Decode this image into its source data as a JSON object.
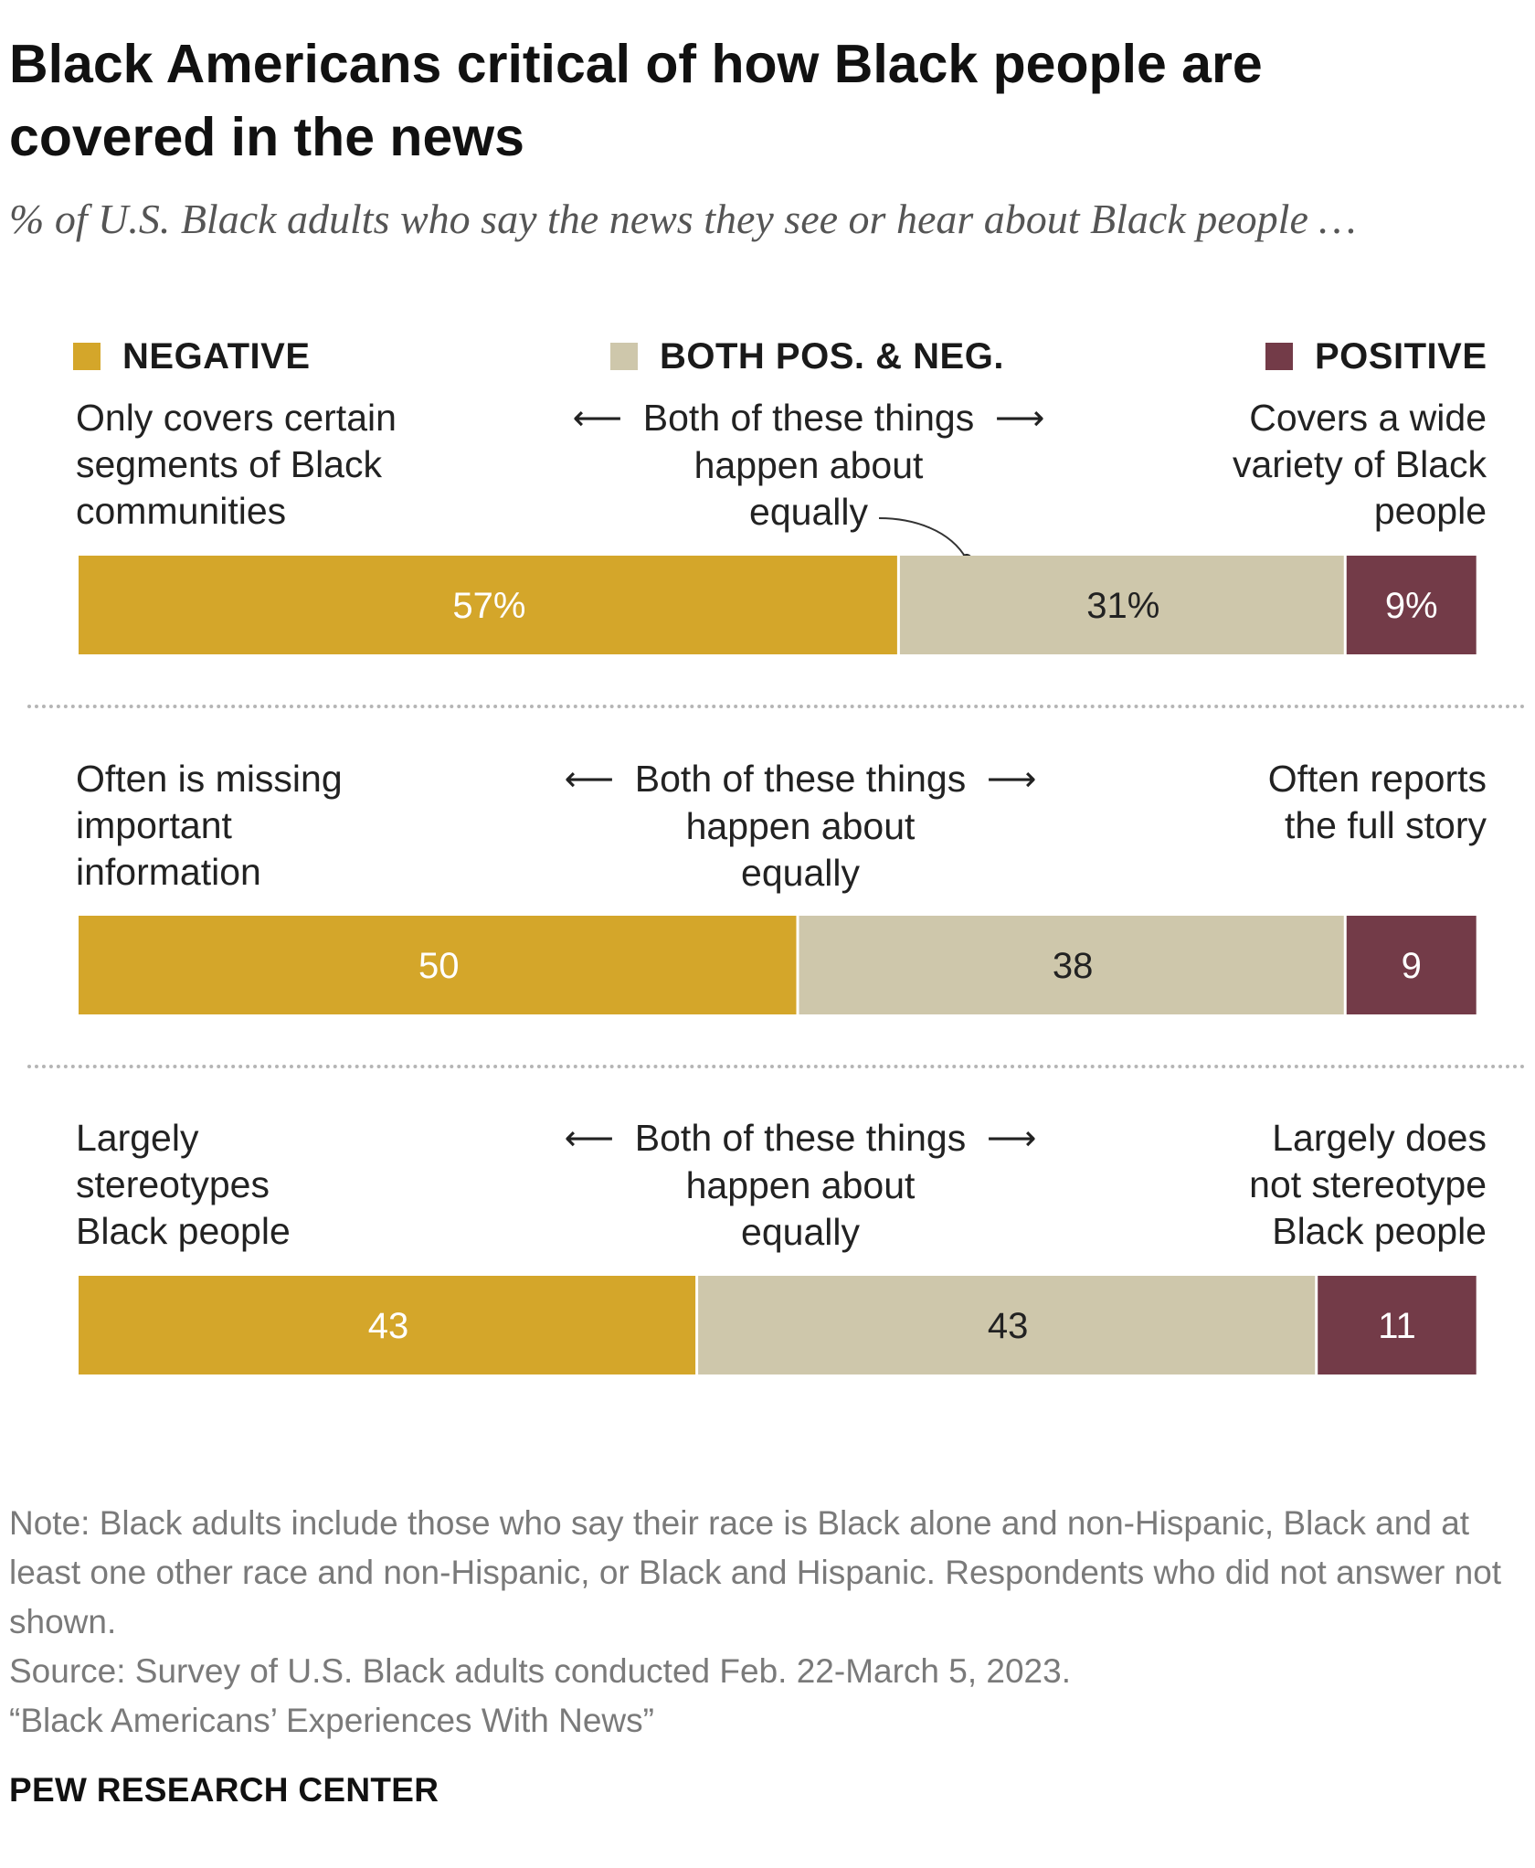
{
  "title": "Black Americans critical of how Black people are covered in the news",
  "subtitle": "% of U.S. Black adults who say the news they see or hear about Black people …",
  "legend": [
    {
      "label": "NEGATIVE",
      "color": "#D4A62A"
    },
    {
      "label": "BOTH POS. & NEG.",
      "color": "#CEC7AB"
    },
    {
      "label": "POSITIVE",
      "color": "#733B48"
    }
  ],
  "rows": [
    {
      "left_label": [
        "Only covers certain",
        "segments of Black",
        "communities"
      ],
      "middle_label": [
        "Both of these things",
        "happen about",
        "equally"
      ],
      "right_label": [
        "Covers a wide",
        "variety of Black",
        "people"
      ]
    },
    {
      "left_label": [
        "Often is missing",
        "important",
        "information"
      ],
      "middle_label": [
        "Both of these things",
        "happen about",
        "equally"
      ],
      "right_label": [
        "Often reports",
        "the full story"
      ]
    },
    {
      "left_label": [
        "Largely",
        "stereotypes",
        "Black people"
      ],
      "middle_label": [
        "Both of these things",
        "happen about",
        "equally"
      ],
      "right_label": [
        "Largely does",
        "not stereotype",
        "Black people"
      ]
    }
  ],
  "chart_data": {
    "type": "bar",
    "stacked": true,
    "orientation": "horizontal",
    "categories": [
      "Only covers certain segments of Black communities / Covers a wide variety of Black people",
      "Often is missing important information / Often reports the full story",
      "Largely stereotypes Black people / Largely does not stereotype Black people"
    ],
    "series": [
      {
        "name": "NEGATIVE",
        "values": [
          57,
          50,
          43
        ],
        "labels": [
          "57%",
          "50",
          "43"
        ],
        "color": "#D4A62A",
        "label_color": "#ffffff"
      },
      {
        "name": "BOTH POS. & NEG.",
        "values": [
          31,
          38,
          43
        ],
        "labels": [
          "31%",
          "38",
          "43"
        ],
        "color": "#CEC7AB",
        "label_color": "#222222"
      },
      {
        "name": "POSITIVE",
        "values": [
          9,
          9,
          11
        ],
        "labels": [
          "9%",
          "9",
          "11"
        ],
        "color": "#733B48",
        "label_color": "#ffffff"
      }
    ],
    "xlim": [
      0,
      97
    ],
    "legend": "top",
    "grid": false
  },
  "notes": [
    "Note: Black adults include those who say their race is Black alone and non-Hispanic, Black and at least one other race and non-Hispanic, or Black and Hispanic. Respondents who did not answer not shown.",
    "Source: Survey of U.S. Black adults conducted Feb. 22-March 5, 2023.",
    "“Black Americans’ Experiences With News”"
  ],
  "brand": "PEW RESEARCH CENTER"
}
